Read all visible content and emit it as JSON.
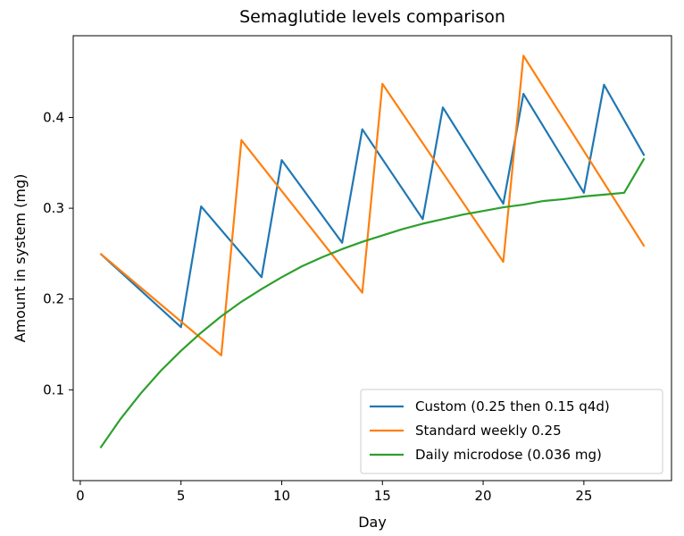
{
  "chart_data": {
    "type": "line",
    "title": "Semaglutide levels comparison",
    "xlabel": "Day",
    "ylabel": "Amount in system (mg)",
    "xlim": [
      -0.35,
      29.35
    ],
    "ylim": [
      0.0,
      0.49
    ],
    "xticks": [
      0,
      5,
      10,
      15,
      20,
      25
    ],
    "yticks": [
      0.1,
      0.2,
      0.3,
      0.4
    ],
    "grid": false,
    "legend_position": "bottom-right",
    "series": [
      {
        "name": "Custom (0.25 then 0.15 q4d)",
        "color": "#1f77b4",
        "x": [
          1,
          5,
          6,
          9,
          10,
          13,
          14,
          17,
          18,
          21,
          22,
          25,
          26,
          28
        ],
        "y": [
          0.25,
          0.169,
          0.302,
          0.224,
          0.353,
          0.262,
          0.387,
          0.288,
          0.411,
          0.305,
          0.426,
          0.317,
          0.436,
          0.358
        ]
      },
      {
        "name": "Standard weekly 0.25",
        "color": "#ff7f0e",
        "x": [
          1,
          7,
          8,
          14,
          15,
          21,
          22,
          28
        ],
        "y": [
          0.25,
          0.138,
          0.375,
          0.207,
          0.437,
          0.241,
          0.468,
          0.258
        ]
      },
      {
        "name": "Daily microdose (0.036 mg)",
        "color": "#2ca02c",
        "x": [
          1,
          2,
          3,
          4,
          5,
          6,
          7,
          8,
          9,
          10,
          11,
          12,
          13,
          14,
          15,
          16,
          17,
          18,
          19,
          20,
          21,
          22,
          23,
          24,
          25,
          26,
          27,
          28
        ],
        "y": [
          0.036,
          0.068,
          0.096,
          0.121,
          0.143,
          0.163,
          0.181,
          0.197,
          0.211,
          0.224,
          0.236,
          0.246,
          0.255,
          0.263,
          0.27,
          0.277,
          0.283,
          0.288,
          0.293,
          0.297,
          0.301,
          0.304,
          0.308,
          0.31,
          0.313,
          0.315,
          0.317,
          0.355
        ]
      }
    ]
  }
}
